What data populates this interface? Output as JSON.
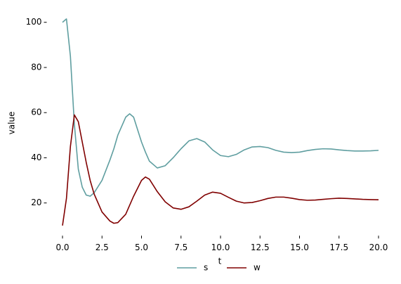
{
  "chart_data": {
    "type": "line",
    "x_label": "t",
    "y_label": "value",
    "x": [
      0,
      0.25,
      0.5,
      0.75,
      1,
      1.25,
      1.5,
      1.75,
      2,
      2.5,
      3,
      3.25,
      3.5,
      4,
      4.25,
      4.5,
      5,
      5.25,
      5.5,
      6,
      6.5,
      7,
      7.5,
      8,
      8.5,
      9,
      9.5,
      10,
      10.5,
      11,
      11.5,
      12,
      12.5,
      13,
      13.5,
      14,
      14.5,
      15,
      15.5,
      16,
      16.5,
      17,
      17.5,
      18,
      18.5,
      19,
      19.5,
      20
    ],
    "series": [
      {
        "name": "s",
        "color": "#5f9ea0",
        "values": [
          100,
          101.5,
          85,
          55,
          35,
          27,
          23.5,
          23,
          24.5,
          30,
          39,
          44,
          50,
          58,
          59.5,
          58,
          47,
          42.5,
          38.5,
          35.5,
          36.5,
          40,
          44,
          47.5,
          48.5,
          47,
          43.5,
          41,
          40.5,
          41.5,
          43.5,
          44.8,
          45,
          44.5,
          43.3,
          42.5,
          42.3,
          42.5,
          43.2,
          43.7,
          44,
          43.9,
          43.5,
          43.2,
          43,
          43,
          43.1,
          43.3
        ]
      },
      {
        "name": "w",
        "color": "#800000",
        "values": [
          10,
          22,
          45,
          59,
          56,
          47,
          38,
          30,
          24,
          16,
          12,
          11,
          11.3,
          15,
          19,
          23,
          30,
          31.5,
          30.5,
          25,
          20.5,
          17.8,
          17.2,
          18.3,
          20.8,
          23.5,
          24.8,
          24.3,
          22.5,
          20.8,
          20,
          20.2,
          21,
          22,
          22.6,
          22.6,
          22.1,
          21.5,
          21.2,
          21.3,
          21.6,
          21.9,
          22.1,
          22,
          21.8,
          21.6,
          21.5,
          21.4
        ]
      }
    ],
    "xlim": [
      -1,
      21
    ],
    "ylim": [
      5.5,
      107.2
    ],
    "xticks": [
      {
        "value": 0,
        "label": "0.0"
      },
      2.5,
      {
        "value": 5,
        "label": "5.0"
      },
      7.5,
      {
        "value": 10,
        "label": "10.0"
      },
      12.5,
      {
        "value": 15,
        "label": "15.0"
      },
      17.5,
      {
        "value": 20,
        "label": "20.0"
      }
    ],
    "yticks": [
      20,
      40,
      60,
      80,
      100
    ],
    "legend": "lower center"
  }
}
